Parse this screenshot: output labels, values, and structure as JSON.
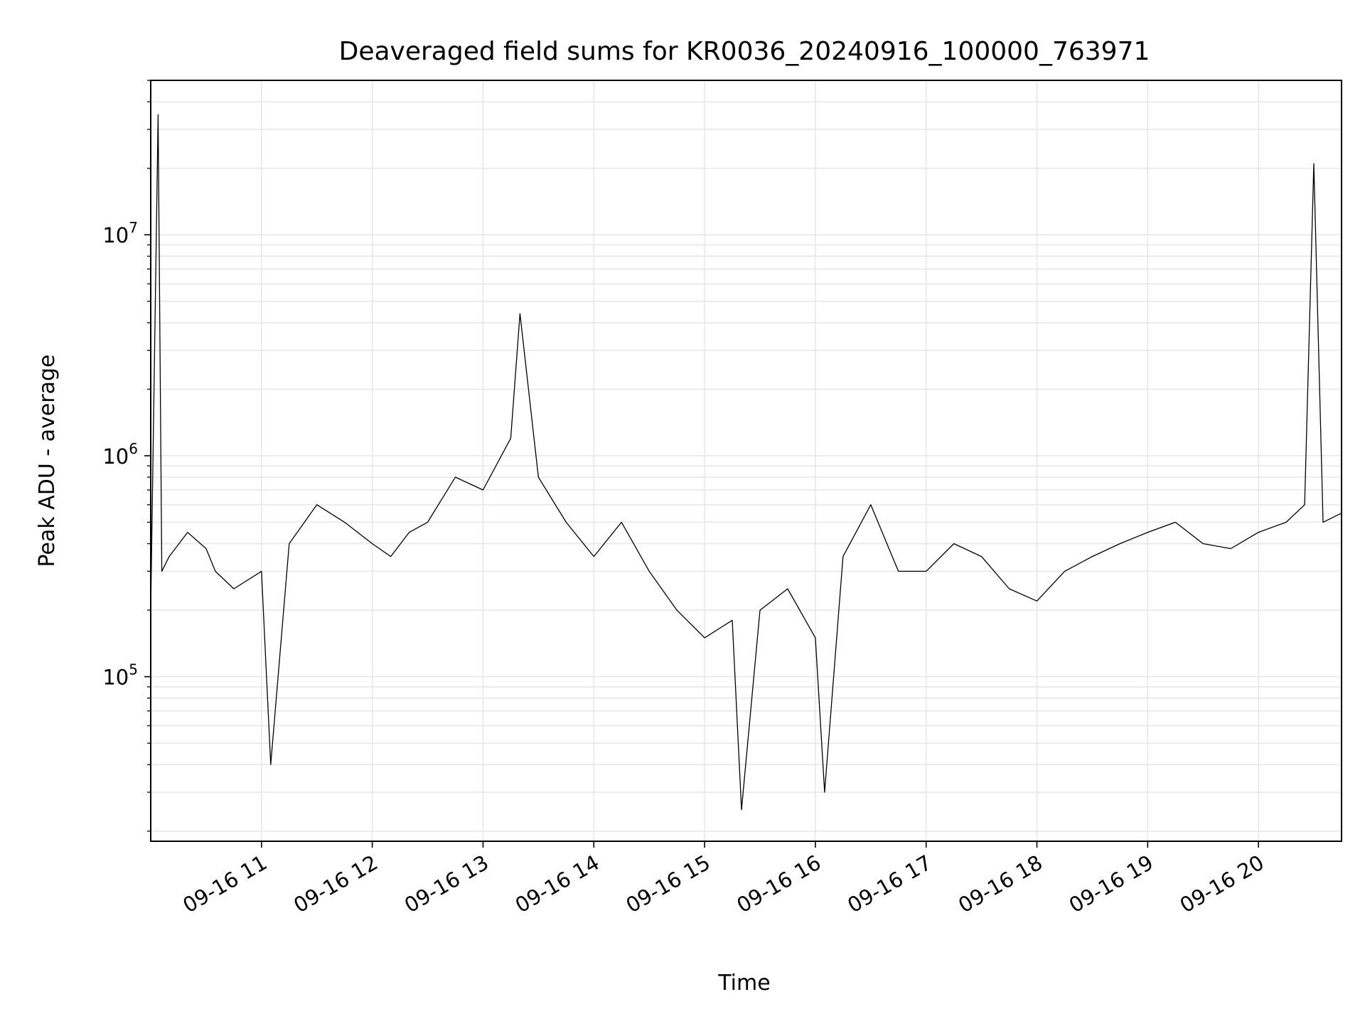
{
  "chart_data": {
    "type": "line",
    "title": "Deaveraged field sums for KR0036_20240916_100000_763971",
    "xlabel": "Time",
    "ylabel": "Peak ADU - average",
    "y_scale": "log",
    "ylim": [
      18000,
      50000000
    ],
    "xlim": [
      "2024-09-16T10:00:00",
      "2024-09-16T20:45:00"
    ],
    "grid": true,
    "line_color": "#000000",
    "grid_color": "#e6e6e6",
    "x_ticks": [
      {
        "value": "2024-09-16T11:00:00",
        "label": "09-16 11"
      },
      {
        "value": "2024-09-16T12:00:00",
        "label": "09-16 12"
      },
      {
        "value": "2024-09-16T13:00:00",
        "label": "09-16 13"
      },
      {
        "value": "2024-09-16T14:00:00",
        "label": "09-16 14"
      },
      {
        "value": "2024-09-16T15:00:00",
        "label": "09-16 15"
      },
      {
        "value": "2024-09-16T16:00:00",
        "label": "09-16 16"
      },
      {
        "value": "2024-09-16T17:00:00",
        "label": "09-16 17"
      },
      {
        "value": "2024-09-16T18:00:00",
        "label": "09-16 18"
      },
      {
        "value": "2024-09-16T19:00:00",
        "label": "09-16 19"
      },
      {
        "value": "2024-09-16T20:00:00",
        "label": "09-16 20"
      }
    ],
    "y_ticks": [
      {
        "value": 100000,
        "base": "10",
        "exp": "5"
      },
      {
        "value": 1000000,
        "base": "10",
        "exp": "6"
      },
      {
        "value": 10000000,
        "base": "10",
        "exp": "7"
      }
    ],
    "series": [
      {
        "x": [
          "2024-09-16T10:00:00",
          "2024-09-16T10:04:00",
          "2024-09-16T10:06:00",
          "2024-09-16T10:10:00",
          "2024-09-16T10:20:00",
          "2024-09-16T10:30:00",
          "2024-09-16T10:35:00",
          "2024-09-16T10:45:00",
          "2024-09-16T11:00:00",
          "2024-09-16T11:05:00",
          "2024-09-16T11:15:00",
          "2024-09-16T11:30:00",
          "2024-09-16T11:45:00",
          "2024-09-16T12:00:00",
          "2024-09-16T12:10:00",
          "2024-09-16T12:20:00",
          "2024-09-16T12:30:00",
          "2024-09-16T12:45:00",
          "2024-09-16T13:00:00",
          "2024-09-16T13:15:00",
          "2024-09-16T13:20:00",
          "2024-09-16T13:30:00",
          "2024-09-16T13:45:00",
          "2024-09-16T14:00:00",
          "2024-09-16T14:15:00",
          "2024-09-16T14:30:00",
          "2024-09-16T14:45:00",
          "2024-09-16T15:00:00",
          "2024-09-16T15:15:00",
          "2024-09-16T15:20:00",
          "2024-09-16T15:30:00",
          "2024-09-16T15:45:00",
          "2024-09-16T16:00:00",
          "2024-09-16T16:05:00",
          "2024-09-16T16:15:00",
          "2024-09-16T16:30:00",
          "2024-09-16T16:45:00",
          "2024-09-16T17:00:00",
          "2024-09-16T17:15:00",
          "2024-09-16T17:30:00",
          "2024-09-16T17:45:00",
          "2024-09-16T18:00:00",
          "2024-09-16T18:15:00",
          "2024-09-16T18:30:00",
          "2024-09-16T18:45:00",
          "2024-09-16T19:00:00",
          "2024-09-16T19:15:00",
          "2024-09-16T19:30:00",
          "2024-09-16T19:45:00",
          "2024-09-16T20:00:00",
          "2024-09-16T20:15:00",
          "2024-09-16T20:25:00",
          "2024-09-16T20:30:00",
          "2024-09-16T20:35:00",
          "2024-09-16T20:45:00"
        ],
        "y": [
          200000,
          35000000,
          300000,
          350000,
          450000,
          380000,
          300000,
          250000,
          300000,
          40000,
          400000,
          600000,
          500000,
          400000,
          350000,
          450000,
          500000,
          800000,
          700000,
          1200000,
          4400000,
          800000,
          500000,
          350000,
          500000,
          300000,
          200000,
          150000,
          180000,
          25000,
          200000,
          250000,
          150000,
          30000,
          350000,
          600000,
          300000,
          300000,
          400000,
          350000,
          250000,
          220000,
          300000,
          350000,
          400000,
          450000,
          500000,
          400000,
          380000,
          450000,
          500000,
          600000,
          21000000,
          500000,
          550000
        ]
      }
    ]
  }
}
